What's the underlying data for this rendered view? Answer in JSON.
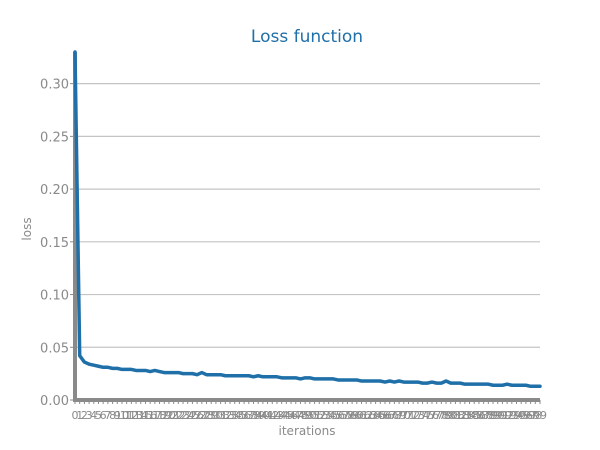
{
  "chart_data": {
    "type": "line",
    "title": "Loss function",
    "xlabel": "iterations",
    "ylabel": "loss",
    "ylim": [
      0,
      0.33
    ],
    "xlim": [
      0,
      99
    ],
    "grid": true,
    "legend": "none",
    "yticks": [
      0.0,
      0.05,
      0.1,
      0.15,
      0.2,
      0.25,
      0.3
    ],
    "ytick_labels": [
      "0.00",
      "0.05",
      "0.10",
      "0.15",
      "0.20",
      "0.25",
      "0.30"
    ],
    "x": [
      0,
      1,
      2,
      3,
      4,
      5,
      6,
      7,
      8,
      9,
      10,
      11,
      12,
      13,
      14,
      15,
      16,
      17,
      18,
      19,
      20,
      21,
      22,
      23,
      24,
      25,
      26,
      27,
      28,
      29,
      30,
      31,
      32,
      33,
      34,
      35,
      36,
      37,
      38,
      39,
      40,
      41,
      42,
      43,
      44,
      45,
      46,
      47,
      48,
      49,
      50,
      51,
      52,
      53,
      54,
      55,
      56,
      57,
      58,
      59,
      60,
      61,
      62,
      63,
      64,
      65,
      66,
      67,
      68,
      69,
      70,
      71,
      72,
      73,
      74,
      75,
      76,
      77,
      78,
      79,
      80,
      81,
      82,
      83,
      84,
      85,
      86,
      87,
      88,
      89,
      90,
      91,
      92,
      93,
      94,
      95,
      96,
      97,
      98,
      99
    ],
    "xtick_labels": [
      "0",
      "1",
      "2",
      "3",
      "4",
      "5",
      "6",
      "7",
      "8",
      "9",
      "10",
      "11",
      "12",
      "13",
      "14",
      "15",
      "16",
      "17",
      "18",
      "19",
      "20",
      "21",
      "22",
      "23",
      "24",
      "25",
      "26",
      "27",
      "28",
      "29",
      "30",
      "31",
      "32",
      "33",
      "34",
      "35",
      "36",
      "37",
      "38",
      "39",
      "40",
      "41",
      "42",
      "43",
      "44",
      "45",
      "46",
      "47",
      "48",
      "49",
      "50",
      "51",
      "52",
      "53",
      "54",
      "55",
      "56",
      "57",
      "58",
      "59",
      "60",
      "61",
      "62",
      "63",
      "64",
      "65",
      "66",
      "67",
      "68",
      "69",
      "70",
      "71",
      "72",
      "73",
      "74",
      "75",
      "76",
      "77",
      "78",
      "79",
      "80",
      "81",
      "82",
      "83",
      "84",
      "85",
      "86",
      "87",
      "88",
      "89",
      "90",
      "91",
      "92",
      "93",
      "94",
      "95",
      "96",
      "97",
      "98",
      "99"
    ],
    "series": [
      {
        "values": [
          0.33,
          0.042,
          0.036,
          0.034,
          0.033,
          0.032,
          0.031,
          0.031,
          0.03,
          0.03,
          0.029,
          0.029,
          0.029,
          0.028,
          0.028,
          0.028,
          0.027,
          0.028,
          0.027,
          0.026,
          0.026,
          0.026,
          0.026,
          0.025,
          0.025,
          0.025,
          0.024,
          0.026,
          0.024,
          0.024,
          0.024,
          0.024,
          0.023,
          0.023,
          0.023,
          0.023,
          0.023,
          0.023,
          0.022,
          0.023,
          0.022,
          0.022,
          0.022,
          0.022,
          0.021,
          0.021,
          0.021,
          0.021,
          0.02,
          0.021,
          0.021,
          0.02,
          0.02,
          0.02,
          0.02,
          0.02,
          0.019,
          0.019,
          0.019,
          0.019,
          0.019,
          0.018,
          0.018,
          0.018,
          0.018,
          0.018,
          0.017,
          0.018,
          0.017,
          0.018,
          0.017,
          0.017,
          0.017,
          0.017,
          0.016,
          0.016,
          0.017,
          0.016,
          0.016,
          0.018,
          0.016,
          0.016,
          0.016,
          0.015,
          0.015,
          0.015,
          0.015,
          0.015,
          0.015,
          0.014,
          0.014,
          0.014,
          0.015,
          0.014,
          0.014,
          0.014,
          0.014,
          0.013,
          0.013,
          0.013
        ]
      }
    ]
  },
  "colors": {
    "title": "#1f6fa8",
    "line": "#1f6fa8",
    "grid": "#c4c4c4",
    "axis": "#8a8a8a",
    "tick_text": "#8a8a8a"
  }
}
